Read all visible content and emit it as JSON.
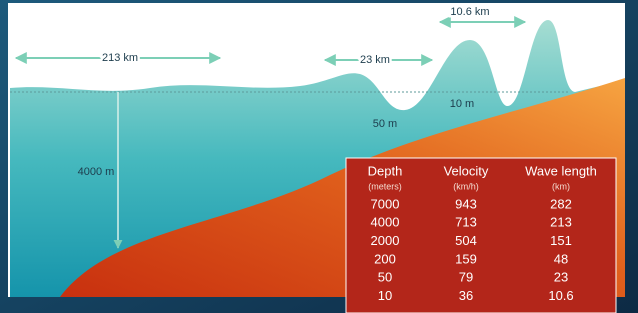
{
  "labels": [
    "213 km",
    "23 km",
    "10.6 km",
    "4000 m",
    "50 m",
    "10 m"
  ],
  "table": {
    "headers": [
      [
        "Depth",
        "(meters)"
      ],
      [
        "Velocity",
        "(km/h)"
      ],
      [
        "Wave length",
        "(km)"
      ]
    ],
    "rows": [
      [
        "7000",
        "943",
        "282"
      ],
      [
        "4000",
        "713",
        "213"
      ],
      [
        "2000",
        "504",
        "151"
      ],
      [
        "200",
        "159",
        "48"
      ],
      [
        "50",
        "79",
        "23"
      ],
      [
        "10",
        "36",
        "10.6"
      ]
    ]
  }
}
